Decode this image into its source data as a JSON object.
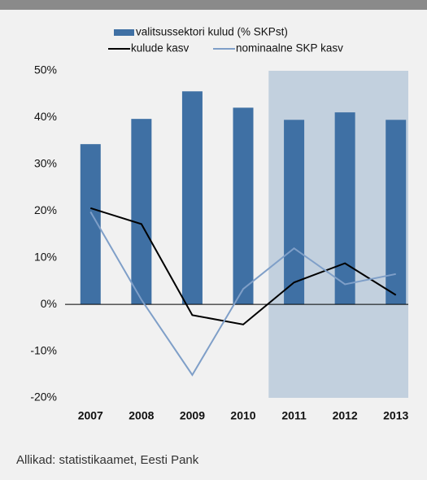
{
  "chart_data": {
    "type": "bar",
    "categories": [
      "2007",
      "2008",
      "2009",
      "2010",
      "2011",
      "2012",
      "2013"
    ],
    "series": [
      {
        "name": "valitsussektori kulud (% SKPst)",
        "type": "bar",
        "color": "#3f70a4",
        "values": [
          34.3,
          39.7,
          45.6,
          42.1,
          39.5,
          41.1,
          39.5
        ]
      },
      {
        "name": "kulude kasv",
        "type": "line",
        "color": "#000000",
        "values": [
          20.6,
          17.2,
          -2.3,
          -4.3,
          4.7,
          8.8,
          2.0
        ]
      },
      {
        "name": "nominaalne SKP kasv",
        "type": "line",
        "color": "#7f9fc8",
        "values": [
          19.8,
          1.0,
          -15.1,
          3.3,
          12.0,
          4.3,
          6.5
        ]
      }
    ],
    "ylim": [
      -20,
      50
    ],
    "yticks": [
      {
        "value": 50,
        "label": "50%"
      },
      {
        "value": 40,
        "label": "40%"
      },
      {
        "value": 30,
        "label": "30%"
      },
      {
        "value": 20,
        "label": "20%"
      },
      {
        "value": 10,
        "label": "10%"
      },
      {
        "value": 0,
        "label": "0%"
      },
      {
        "value": -10,
        "label": "-10%"
      },
      {
        "value": -20,
        "label": "-20%"
      }
    ],
    "shade_from": "2011",
    "shade_color": "#c2d0de",
    "source": "Allikad: statistikaamet, Eesti Pank"
  }
}
